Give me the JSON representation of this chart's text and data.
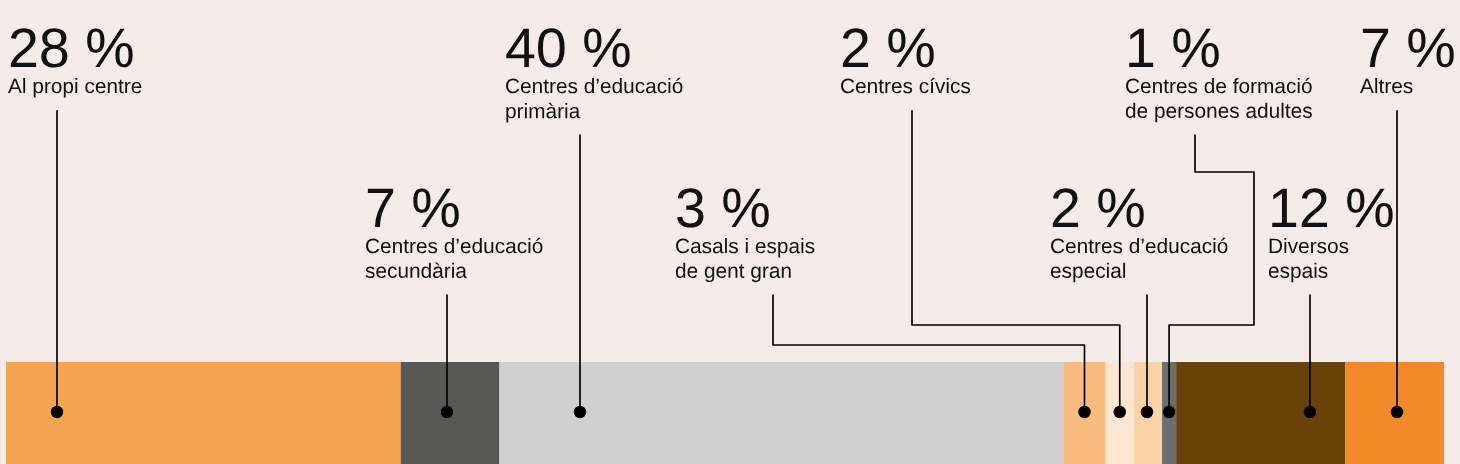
{
  "chart_data": {
    "type": "bar",
    "orientation": "horizontal",
    "stacked": true,
    "categories": [
      null
    ],
    "legend": false,
    "tick_labels": false,
    "series": [
      {
        "name": "Al propi centre",
        "color": "#f5a452",
        "values": [
          28
        ],
        "value_labels": [
          "28 %"
        ]
      },
      {
        "name": "Centres d’educació\nsecundària",
        "color": "#585857",
        "values": [
          7
        ],
        "value_labels": [
          "7 %"
        ]
      },
      {
        "name": "Centres d’educació\nprimària",
        "color": "#d0d0d0",
        "values": [
          40
        ],
        "value_labels": [
          "40 %"
        ]
      },
      {
        "name": "Casals i espais\nde gent gran",
        "color": "#f8bb80",
        "values": [
          3
        ],
        "value_labels": [
          "3 %"
        ]
      },
      {
        "name": "Centres cívics",
        "color": "#fde6d2",
        "values": [
          2
        ],
        "value_labels": [
          "2 %"
        ]
      },
      {
        "name": "Centres d’educació\nespecial",
        "color": "#fad2a8",
        "values": [
          2
        ],
        "value_labels": [
          "2 %"
        ]
      },
      {
        "name": "Centres de formació\nde persones adultes",
        "color": "#6d6d6d",
        "values": [
          1
        ],
        "value_labels": [
          "1 %"
        ]
      },
      {
        "name": "Diversos\nespais",
        "color": "#684208",
        "values": [
          12
        ],
        "value_labels": [
          "12 %"
        ]
      },
      {
        "name": "Altres",
        "color": "#f28a2a",
        "values": [
          7
        ],
        "value_labels": [
          "7 %"
        ]
      }
    ]
  }
}
